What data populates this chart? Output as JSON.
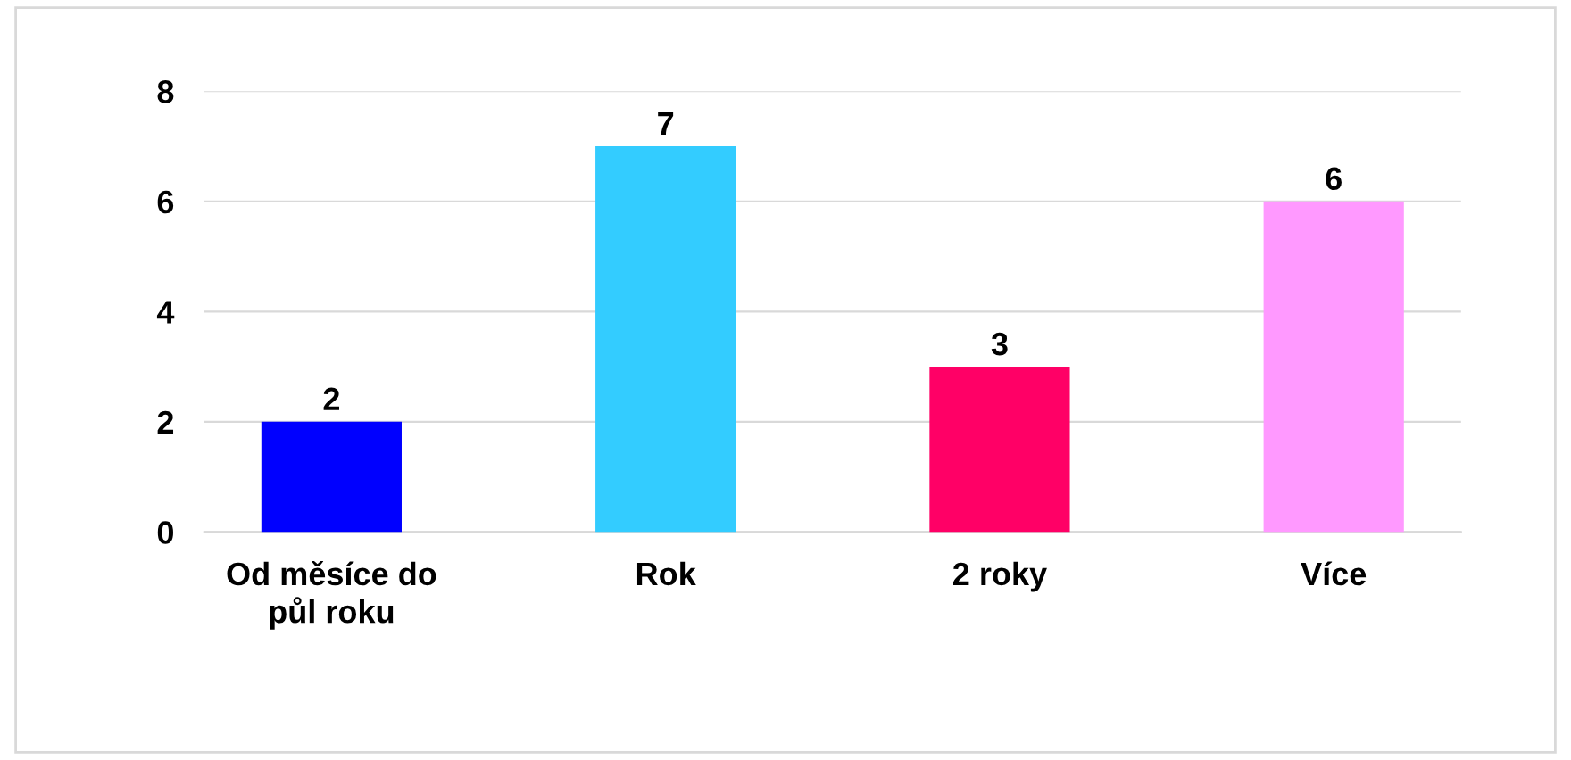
{
  "chart_data": {
    "type": "bar",
    "categories": [
      "Od měsíce do\npůl roku",
      "Rok",
      "2 roky",
      "Více"
    ],
    "values": [
      2,
      7,
      3,
      6
    ],
    "colors": [
      "#0000ff",
      "#33ccff",
      "#ff0066",
      "#ff99ff"
    ],
    "ylim": [
      0,
      8
    ],
    "yticks": [
      0,
      2,
      4,
      6,
      8
    ],
    "grid": "y",
    "data_labels": true
  }
}
